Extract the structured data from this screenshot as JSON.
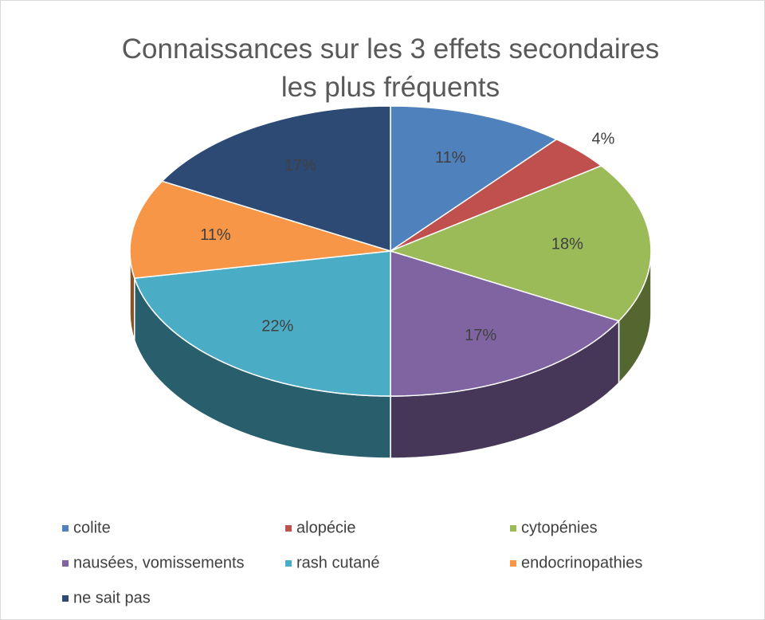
{
  "chart_data": {
    "type": "pie3d",
    "title": "Connaissances sur les 3 effets secondaires les plus fréquents",
    "categories": [
      "colite",
      "alopécie",
      "cytopénies",
      "nausées, vomissements",
      "rash cutané",
      "endocrinopathies",
      "ne sait pas"
    ],
    "values": [
      11,
      4,
      18,
      17,
      22,
      11,
      17
    ],
    "value_labels": [
      "11%",
      "4%",
      "18%",
      "17%",
      "22%",
      "11%",
      "17%"
    ],
    "colors": [
      "#4f81bd",
      "#c0504d",
      "#9bbb59",
      "#8064a2",
      "#4bacc6",
      "#f79646",
      "#2c4a74"
    ],
    "legend": "bottom"
  }
}
